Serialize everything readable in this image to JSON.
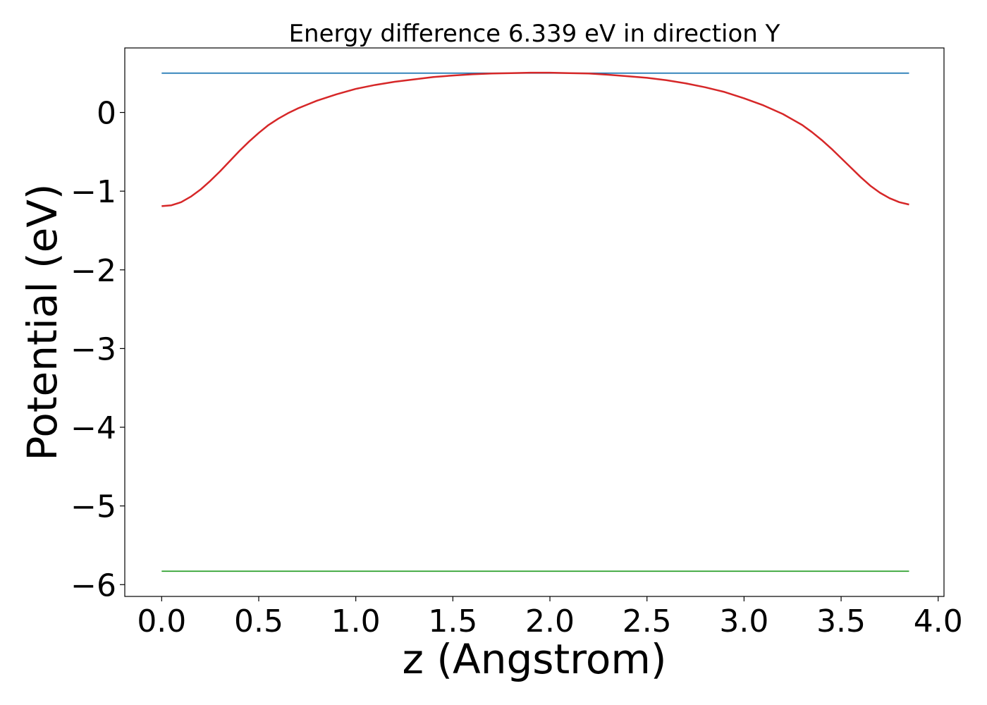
{
  "chart_data": {
    "type": "line",
    "title": "Energy difference 6.339 eV in direction Y",
    "xlabel": "z (Angstrom)",
    "ylabel": "Potential (eV)",
    "xlim": [
      -0.19,
      4.03
    ],
    "ylim": [
      -6.15,
      0.82
    ],
    "xticks": [
      0.0,
      0.5,
      1.0,
      1.5,
      2.0,
      2.5,
      3.0,
      3.5,
      4.0
    ],
    "xtick_labels": [
      "0.0",
      "0.5",
      "1.0",
      "1.5",
      "2.0",
      "2.5",
      "3.0",
      "3.5",
      "4.0"
    ],
    "yticks": [
      0,
      -1,
      -2,
      -3,
      -4,
      -5,
      -6
    ],
    "ytick_labels": [
      "0",
      "−1",
      "−2",
      "−3",
      "−4",
      "−5",
      "−6"
    ],
    "grid": false,
    "series": [
      {
        "color": "#1f77b4",
        "x": [
          0.0,
          3.85
        ],
        "y": [
          0.5,
          0.5
        ]
      },
      {
        "color": "#2ca02c",
        "x": [
          0.0,
          3.85
        ],
        "y": [
          -5.83,
          -5.83
        ]
      },
      {
        "color": "#d62728",
        "x": [
          0.0,
          0.05,
          0.1,
          0.15,
          0.2,
          0.25,
          0.3,
          0.35,
          0.4,
          0.45,
          0.5,
          0.55,
          0.6,
          0.65,
          0.7,
          0.75,
          0.8,
          0.9,
          1.0,
          1.1,
          1.2,
          1.3,
          1.4,
          1.5,
          1.6,
          1.7,
          1.8,
          1.9,
          2.0,
          2.1,
          2.2,
          2.3,
          2.4,
          2.5,
          2.6,
          2.7,
          2.8,
          2.9,
          3.0,
          3.1,
          3.2,
          3.25,
          3.3,
          3.35,
          3.4,
          3.45,
          3.5,
          3.55,
          3.6,
          3.65,
          3.7,
          3.75,
          3.8,
          3.85
        ],
        "y": [
          -1.19,
          -1.18,
          -1.14,
          -1.07,
          -0.98,
          -0.87,
          -0.75,
          -0.62,
          -0.49,
          -0.37,
          -0.26,
          -0.16,
          -0.08,
          -0.01,
          0.05,
          0.1,
          0.15,
          0.23,
          0.3,
          0.35,
          0.39,
          0.42,
          0.45,
          0.47,
          0.485,
          0.495,
          0.5,
          0.505,
          0.505,
          0.5,
          0.495,
          0.48,
          0.46,
          0.44,
          0.41,
          0.37,
          0.32,
          0.26,
          0.18,
          0.09,
          -0.02,
          -0.09,
          -0.16,
          -0.25,
          -0.35,
          -0.46,
          -0.58,
          -0.7,
          -0.82,
          -0.93,
          -1.02,
          -1.09,
          -1.14,
          -1.17
        ]
      }
    ]
  }
}
